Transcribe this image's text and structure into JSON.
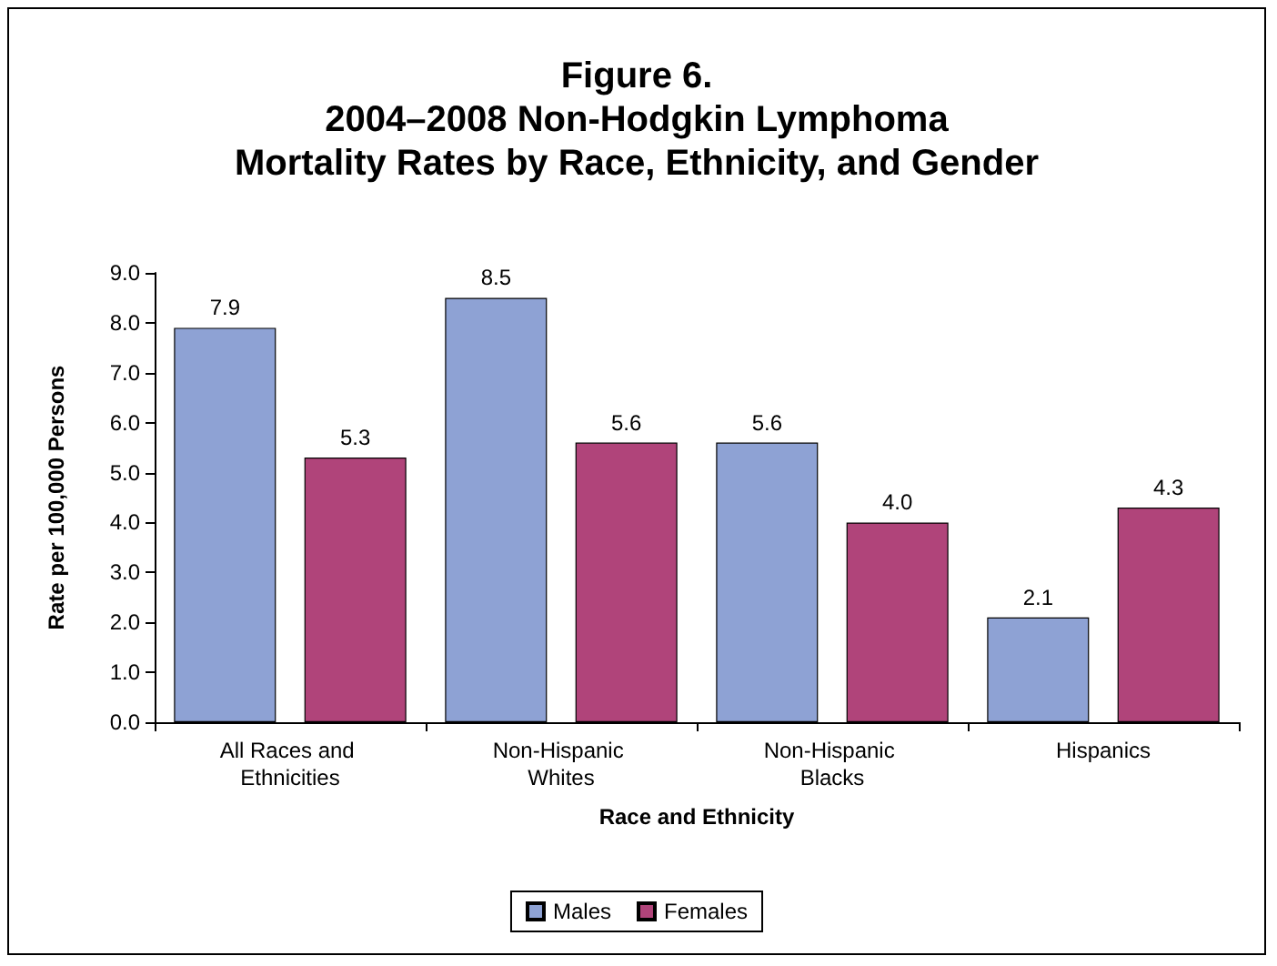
{
  "chart_data": {
    "type": "bar",
    "title": "Figure 6.\n2004–2008 Non-Hodgkin Lymphoma\nMortality Rates by Race, Ethnicity, and Gender",
    "xlabel": "Race and Ethnicity",
    "ylabel": "Rate per 100,000 Persons",
    "categories": [
      "All Races and Ethnicities",
      "Non-Hispanic Whites",
      "Non-Hispanic Blacks",
      "Hispanics"
    ],
    "series": [
      {
        "name": "Males",
        "color": "#8ea2d4",
        "values": [
          7.9,
          8.5,
          5.6,
          2.1
        ],
        "value_labels": [
          "7.9",
          "8.5",
          "5.6",
          "2.1"
        ]
      },
      {
        "name": "Females",
        "color": "#b0447a",
        "values": [
          5.3,
          5.6,
          4.0,
          4.3
        ],
        "value_labels": [
          "5.3",
          "5.6",
          "4.0",
          "4.3"
        ]
      }
    ],
    "ylim": [
      0,
      9
    ],
    "yticks": [
      {
        "value": 0,
        "label": "0.0"
      },
      {
        "value": 1,
        "label": "1.0"
      },
      {
        "value": 2,
        "label": "2.0"
      },
      {
        "value": 3,
        "label": "3.0"
      },
      {
        "value": 4,
        "label": "4.0"
      },
      {
        "value": 5,
        "label": "5.0"
      },
      {
        "value": 6,
        "label": "6.0"
      },
      {
        "value": 7,
        "label": "7.0"
      },
      {
        "value": 8,
        "label": "8.0"
      },
      {
        "value": 9,
        "label": "9.0"
      }
    ],
    "grid": false,
    "legend": "bottom"
  }
}
